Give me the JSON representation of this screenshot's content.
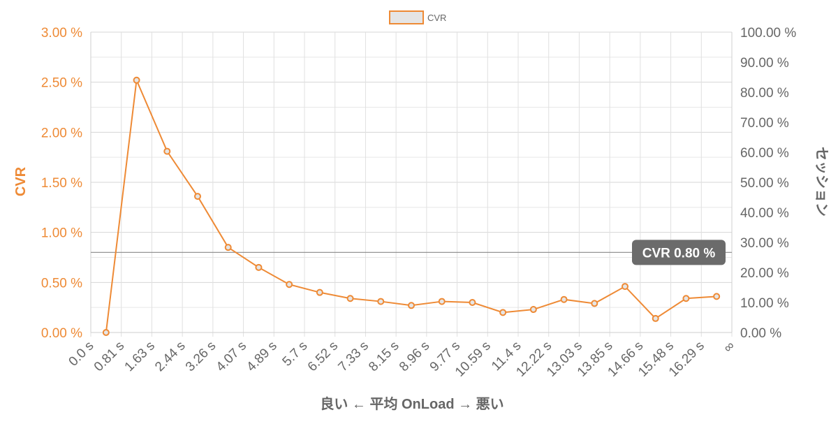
{
  "chart_data": {
    "type": "line",
    "legend": {
      "label": "CVR",
      "position": "top"
    },
    "series": [
      {
        "name": "CVR",
        "color": "#ee8a35",
        "fill_color": "#e5e5e5",
        "values": [
          0.0,
          2.52,
          1.81,
          1.36,
          0.85,
          0.65,
          0.48,
          0.4,
          0.34,
          0.31,
          0.27,
          0.31,
          0.3,
          0.2,
          0.23,
          0.33,
          0.29,
          0.46,
          0.14,
          0.34,
          0.36
        ]
      }
    ],
    "x_tick_labels": [
      "0.0 s",
      "0.81 s",
      "1.63 s",
      "2.44 s",
      "3.26 s",
      "4.07 s",
      "4.89 s",
      "5.7 s",
      "6.52 s",
      "7.33 s",
      "8.15 s",
      "8.96 s",
      "9.77 s",
      "10.59 s",
      "11.4 s",
      "12.22 s",
      "13.03 s",
      "13.85 s",
      "14.66 s",
      "15.48 s",
      "16.29 s",
      "∞"
    ],
    "y_left": {
      "label": "CVR",
      "ticks": [
        "0.00 %",
        "0.50 %",
        "1.00 %",
        "1.50 %",
        "2.00 %",
        "2.50 %",
        "3.00 %"
      ],
      "min": 0,
      "max": 3
    },
    "y_right": {
      "label": "セッション",
      "ticks": [
        "0.00 %",
        "10.00 %",
        "20.00 %",
        "30.00 %",
        "40.00 %",
        "50.00 %",
        "60.00 %",
        "70.00 %",
        "80.00 %",
        "90.00 %",
        "100.00 %"
      ],
      "min": 0,
      "max": 100
    },
    "xlabel": "良い ← 平均 OnLoad → 悪い",
    "reference_line": {
      "value": 0.8,
      "label": "CVR 0.80 %"
    },
    "grid": true
  }
}
